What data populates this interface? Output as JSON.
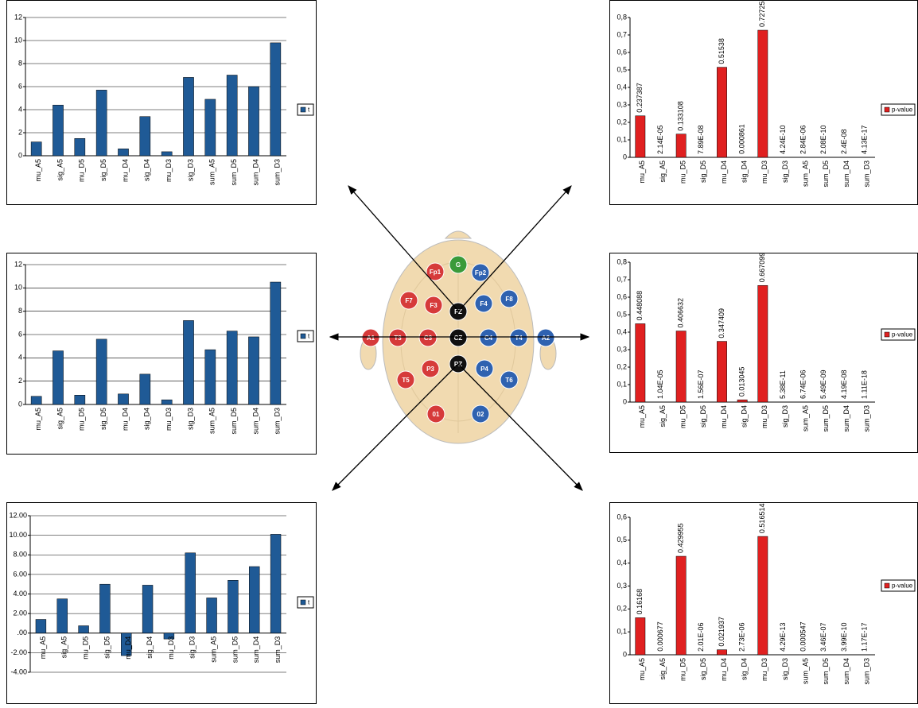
{
  "chart_data": [
    {
      "type": "bar",
      "categories": [
        "mu_A5",
        "sig_A5",
        "mu_D5",
        "sig_D5",
        "mu_D4",
        "sig_D4",
        "mu_D3",
        "sig_D3",
        "sum_A5",
        "sum_D5",
        "sum_D4",
        "sum_D3"
      ],
      "series": [
        {
          "name": "t",
          "color": "#1f5a96",
          "values": [
            1.2,
            4.4,
            1.5,
            5.7,
            0.6,
            3.4,
            0.35,
            6.8,
            4.9,
            7.0,
            6.0,
            9.8
          ]
        }
      ],
      "ylim": [
        0,
        12
      ],
      "yticks": [
        0,
        2,
        4,
        6,
        8,
        10,
        12
      ],
      "grid": true
    },
    {
      "type": "bar",
      "categories": [
        "mu_A5",
        "sig_A5",
        "mu_D5",
        "sig_D5",
        "mu_D4",
        "sig_D4",
        "mu_D3",
        "sig_D3",
        "sum_A5",
        "sum_D5",
        "sum_D4",
        "sum_D3"
      ],
      "series": [
        {
          "name": "t",
          "color": "#1f5a96",
          "values": [
            0.7,
            4.6,
            0.8,
            5.6,
            0.9,
            2.6,
            0.4,
            7.2,
            4.7,
            6.3,
            5.8,
            10.5
          ]
        }
      ],
      "ylim": [
        0,
        12
      ],
      "yticks": [
        0,
        2,
        4,
        6,
        8,
        10,
        12
      ],
      "grid": true
    },
    {
      "type": "bar",
      "categories": [
        "mu_A5",
        "sig_A5",
        "mu_D5",
        "sig_D5",
        "mu_D4",
        "sig_D4",
        "mu_D3",
        "sig_D3",
        "sum_A5",
        "sum_D5",
        "sum_D4",
        "sum_D3"
      ],
      "series": [
        {
          "name": "t",
          "color": "#1f5a96",
          "values": [
            1.4,
            3.5,
            0.75,
            5.0,
            -2.3,
            4.9,
            -0.6,
            8.2,
            3.6,
            5.4,
            6.8,
            10.1
          ]
        }
      ],
      "ylim": [
        -4,
        12
      ],
      "yticks": [
        {
          "value": -4,
          "label": "-4.00"
        },
        {
          "value": -2,
          "label": "-2.00"
        },
        {
          "value": 0,
          "label": ".00"
        },
        {
          "value": 2,
          "label": "2.00"
        },
        {
          "value": 4,
          "label": "4.00"
        },
        {
          "value": 6,
          "label": "6.00"
        },
        {
          "value": 8,
          "label": "8.00"
        },
        {
          "value": 10,
          "label": "10.00"
        },
        {
          "value": 12,
          "label": "12.00"
        }
      ],
      "grid": true
    },
    {
      "type": "bar",
      "categories": [
        "mu_A5",
        "sig_A5",
        "mu_D5",
        "sig_D5",
        "mu_D4",
        "sig_D4",
        "mu_D3",
        "sig_D3",
        "sum_A5",
        "sum_D5",
        "sum_D4",
        "sum_D3"
      ],
      "series": [
        {
          "name": "p-value",
          "color": "#e02020",
          "values": [
            0.237387,
            2.14e-05,
            0.133108,
            7.89e-08,
            0.51538,
            0.000861,
            0.72725,
            4.24e-10,
            2.84e-06,
            2.08e-10,
            2.4e-08,
            4.13e-17
          ],
          "value_labels": [
            "0.237387",
            "2.14E-05",
            "0.133108",
            "7.89E-08",
            "0.51538",
            "0.000861",
            "0.72725",
            "4.24E-10",
            "2.84E-06",
            "2.08E-10",
            "2.4E-08",
            "4.13E-17"
          ]
        }
      ],
      "ylim": [
        0,
        0.8
      ],
      "yticks": [
        0,
        {
          "value": 0.1,
          "label": "0,1"
        },
        {
          "value": 0.2,
          "label": "0,2"
        },
        {
          "value": 0.3,
          "label": "0,3"
        },
        {
          "value": 0.4,
          "label": "0,4"
        },
        {
          "value": 0.5,
          "label": "0,5"
        },
        {
          "value": 0.6,
          "label": "0,6"
        },
        {
          "value": 0.7,
          "label": "0,7"
        },
        {
          "value": 0.8,
          "label": "0,8"
        }
      ],
      "grid": false
    },
    {
      "type": "bar",
      "categories": [
        "mu_A5",
        "sig_A5",
        "mu_D5",
        "sig_D5",
        "mu_D4",
        "sig_D4",
        "mu_D3",
        "sig_D3",
        "sum_A5",
        "sum_D5",
        "sum_D4",
        "sum_D3"
      ],
      "series": [
        {
          "name": "p-value",
          "color": "#e02020",
          "values": [
            0.448088,
            1.04e-05,
            0.406632,
            1.56e-07,
            0.347409,
            0.013045,
            0.667099,
            5.38e-11,
            6.74e-06,
            5.49e-09,
            4.19e-08,
            1.11e-18
          ],
          "value_labels": [
            "0.448088",
            "1.04E-05",
            "0.406632",
            "1.56E-07",
            "0.347409",
            "0.013045",
            "0.667099",
            "5.38E-11",
            "6.74E-06",
            "5.49E-09",
            "4.19E-08",
            "1.11E-18"
          ]
        }
      ],
      "ylim": [
        0,
        0.8
      ],
      "yticks": [
        0,
        {
          "value": 0.1,
          "label": "0,1"
        },
        {
          "value": 0.2,
          "label": "0,2"
        },
        {
          "value": 0.3,
          "label": "0,3"
        },
        {
          "value": 0.4,
          "label": "0,4"
        },
        {
          "value": 0.5,
          "label": "0,5"
        },
        {
          "value": 0.6,
          "label": "0,6"
        },
        {
          "value": 0.7,
          "label": "0,7"
        },
        {
          "value": 0.8,
          "label": "0,8"
        }
      ],
      "grid": false
    },
    {
      "type": "bar",
      "categories": [
        "mu_A5",
        "sig_A5",
        "mu_D5",
        "sig_D5",
        "mu_D4",
        "sig_D4",
        "mu_D3",
        "sig_D3",
        "sum_A5",
        "sum_D5",
        "sum_D4",
        "sum_D3"
      ],
      "series": [
        {
          "name": "p-value",
          "color": "#e02020",
          "values": [
            0.16168,
            0.000677,
            0.429955,
            2.01e-06,
            0.021937,
            2.73e-06,
            0.516514,
            4.29e-13,
            0.000547,
            3.46e-07,
            3.99e-10,
            1.17e-17
          ],
          "value_labels": [
            "0.16168",
            "0.000677",
            "0.429955",
            "2.01E-06",
            "0.021937",
            "2.73E-06",
            "0.516514",
            "4.29E-13",
            "0.000547",
            "3.46E-07",
            "3.99E-10",
            "1.17E-17"
          ]
        }
      ],
      "ylim": [
        0,
        0.6
      ],
      "yticks": [
        0,
        {
          "value": 0.1,
          "label": "0,1"
        },
        {
          "value": 0.2,
          "label": "0,2"
        },
        {
          "value": 0.3,
          "label": "0,3"
        },
        {
          "value": 0.4,
          "label": "0,4"
        },
        {
          "value": 0.5,
          "label": "0,5"
        },
        {
          "value": 0.6,
          "label": "0,6"
        }
      ],
      "grid": false
    }
  ],
  "head": {
    "electrodes": [
      "Fp1",
      "G",
      "Fp2",
      "F7",
      "F3",
      "FZ",
      "F4",
      "F8",
      "A1",
      "T3",
      "C3",
      "CZ",
      "C4",
      "T4",
      "A2",
      "P3",
      "PZ",
      "P4",
      "T5",
      "T6",
      "01",
      "02"
    ]
  }
}
